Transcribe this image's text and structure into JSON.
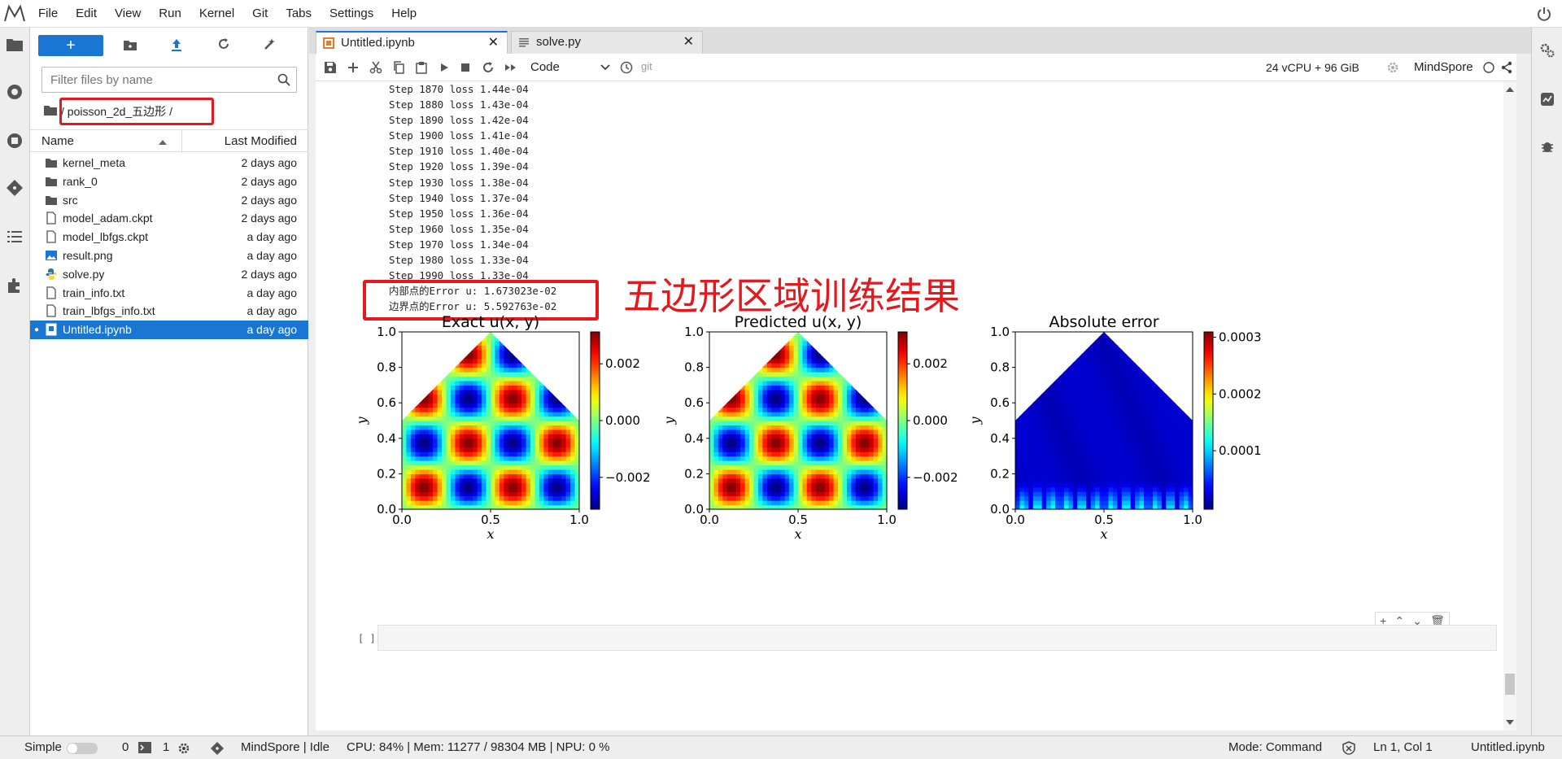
{
  "menu": [
    "File",
    "Edit",
    "View",
    "Run",
    "Kernel",
    "Git",
    "Tabs",
    "Settings",
    "Help"
  ],
  "filebrowser": {
    "new_label": "+",
    "filter_placeholder": "Filter files by name",
    "breadcrumb": "/ poisson_2d_五边形 /",
    "col_name": "Name",
    "col_modified": "Last Modified",
    "files": [
      {
        "name": "kernel_meta",
        "modified": "2 days ago",
        "type": "folder"
      },
      {
        "name": "rank_0",
        "modified": "2 days ago",
        "type": "folder"
      },
      {
        "name": "src",
        "modified": "2 days ago",
        "type": "folder"
      },
      {
        "name": "model_adam.ckpt",
        "modified": "2 days ago",
        "type": "file"
      },
      {
        "name": "model_lbfgs.ckpt",
        "modified": "a day ago",
        "type": "file"
      },
      {
        "name": "result.png",
        "modified": "a day ago",
        "type": "image"
      },
      {
        "name": "solve.py",
        "modified": "2 days ago",
        "type": "python"
      },
      {
        "name": "train_info.txt",
        "modified": "a day ago",
        "type": "file"
      },
      {
        "name": "train_lbfgs_info.txt",
        "modified": "a day ago",
        "type": "file"
      },
      {
        "name": "Untitled.ipynb",
        "modified": "a day ago",
        "type": "notebook",
        "selected": true
      }
    ]
  },
  "tabs": [
    {
      "label": "Untitled.ipynb",
      "active": true
    },
    {
      "label": "solve.py",
      "active": false
    }
  ],
  "toolbar": {
    "cell_type": "Code",
    "git_label": "git",
    "resources": "24 vCPU + 96 GiB",
    "kernel": "MindSpore"
  },
  "output": {
    "steps": [
      "Step 1870 loss 1.44e-04",
      "Step 1880 loss 1.43e-04",
      "Step 1890 loss 1.42e-04",
      "Step 1900 loss 1.41e-04",
      "Step 1910 loss 1.40e-04",
      "Step 1920 loss 1.39e-04",
      "Step 1930 loss 1.38e-04",
      "Step 1940 loss 1.37e-04",
      "Step 1950 loss 1.36e-04",
      "Step 1960 loss 1.35e-04",
      "Step 1970 loss 1.34e-04",
      "Step 1980 loss 1.33e-04",
      "Step 1990 loss 1.33e-04",
      "内部点的Error u: 1.673023e-02",
      "边界点的Error u: 5.592763e-02"
    ],
    "annotation": "五边形区域训练结果"
  },
  "chart_data": [
    {
      "type": "heatmap",
      "title": "Exact u(x, y)",
      "xlabel": "x",
      "ylabel": "y",
      "xlim": [
        0.0,
        1.0
      ],
      "ylim": [
        0.0,
        1.0
      ],
      "xticks": [
        "0.0",
        "0.5",
        "1.0"
      ],
      "yticks": [
        "0.0",
        "0.2",
        "0.4",
        "0.6",
        "0.8",
        "1.0"
      ],
      "colorbar_ticks": [
        "0.002",
        "0.000",
        "−0.002"
      ],
      "colormap": "jet",
      "region": "pentagon"
    },
    {
      "type": "heatmap",
      "title": "Predicted u(x, y)",
      "xlabel": "x",
      "ylabel": "y",
      "xlim": [
        0.0,
        1.0
      ],
      "ylim": [
        0.0,
        1.0
      ],
      "xticks": [
        "0.0",
        "0.5",
        "1.0"
      ],
      "yticks": [
        "0.0",
        "0.2",
        "0.4",
        "0.6",
        "0.8",
        "1.0"
      ],
      "colorbar_ticks": [
        "0.002",
        "0.000",
        "−0.002"
      ],
      "colormap": "jet",
      "region": "pentagon"
    },
    {
      "type": "heatmap",
      "title": "Absolute error",
      "xlabel": "x",
      "ylabel": "y",
      "xlim": [
        0.0,
        1.0
      ],
      "ylim": [
        0.0,
        1.0
      ],
      "xticks": [
        "0.0",
        "0.5",
        "1.0"
      ],
      "yticks": [
        "0.0",
        "0.2",
        "0.4",
        "0.6",
        "0.8",
        "1.0"
      ],
      "colorbar_ticks": [
        "0.0003",
        "0.0002",
        "0.0001"
      ],
      "colormap": "jet",
      "region": "pentagon"
    }
  ],
  "cell_prompt": "[ ]",
  "status": {
    "mode_label": "Simple",
    "terminals": "0",
    "kernels": "1",
    "kernel_status": "MindSpore | Idle",
    "resources": "CPU: 84% | Mem: 11277 / 98304 MB | NPU: 0 %",
    "mode": "Mode: Command",
    "cursor": "Ln 1, Col 1",
    "filename": "Untitled.ipynb"
  }
}
